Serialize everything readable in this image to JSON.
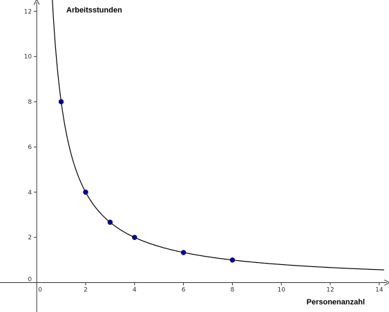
{
  "chart_data": {
    "type": "scatter",
    "title": "",
    "xlabel": "Personenanzahl",
    "ylabel": "Arbeitsstunden",
    "xlim": [
      -1.5,
      14.4
    ],
    "ylim": [
      -1.3,
      12.5
    ],
    "x_ticks": [
      0,
      2,
      4,
      6,
      8,
      10,
      12,
      14
    ],
    "y_ticks": [
      0,
      2,
      4,
      6,
      8,
      10,
      12
    ],
    "grid": false,
    "curve": {
      "function": "8/x",
      "x_start": 0.62,
      "x_end": 14.2,
      "color": "#000000"
    },
    "series": [
      {
        "x": [
          1,
          2,
          3,
          4,
          6,
          8
        ],
        "y": [
          8,
          4,
          2.67,
          2,
          1.33,
          1
        ],
        "color": "#0000aa"
      }
    ]
  }
}
